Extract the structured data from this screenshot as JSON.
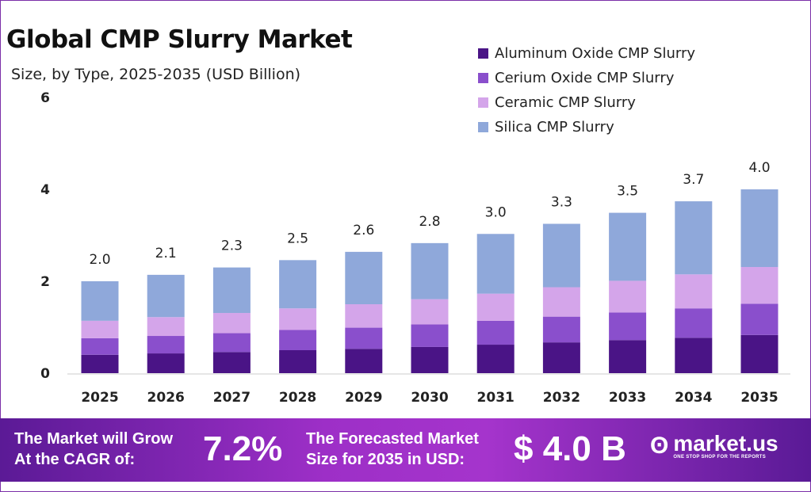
{
  "chart_data": {
    "type": "bar",
    "stacked": true,
    "title": "Global CMP Slurry Market",
    "subtitle": "Size, by Type, 2025-2035 (USD Billion)",
    "categories": [
      "2025",
      "2026",
      "2027",
      "2028",
      "2029",
      "2030",
      "2031",
      "2032",
      "2033",
      "2034",
      "2035"
    ],
    "series": [
      {
        "name": "Aluminum Oxide CMP Slurry",
        "color": "#4a1486",
        "values": [
          0.4,
          0.43,
          0.46,
          0.5,
          0.53,
          0.57,
          0.62,
          0.67,
          0.72,
          0.77,
          0.83
        ]
      },
      {
        "name": "Cerium Oxide CMP Slurry",
        "color": "#8a4fcc",
        "values": [
          0.36,
          0.38,
          0.41,
          0.44,
          0.46,
          0.49,
          0.52,
          0.56,
          0.6,
          0.64,
          0.68
        ]
      },
      {
        "name": "Ceramic CMP Slurry",
        "color": "#d4a5ea",
        "values": [
          0.38,
          0.41,
          0.44,
          0.47,
          0.51,
          0.55,
          0.59,
          0.64,
          0.69,
          0.74,
          0.8
        ]
      },
      {
        "name": "Silica CMP Slurry",
        "color": "#8fa8da",
        "values": [
          0.86,
          0.92,
          0.99,
          1.05,
          1.14,
          1.22,
          1.3,
          1.38,
          1.48,
          1.59,
          1.69
        ]
      }
    ],
    "totals_labels": [
      "2.0",
      "2.1",
      "2.3",
      "2.5",
      "2.6",
      "2.8",
      "3.0",
      "3.3",
      "3.5",
      "3.7",
      "4.0"
    ],
    "yticks": [
      "0",
      "2",
      "4",
      "6"
    ],
    "ylim": [
      0,
      6
    ],
    "grid": false,
    "legend_position": "top-right"
  },
  "footer": {
    "cagr_text_1": "The Market will Grow",
    "cagr_text_2": "At the CAGR of:",
    "cagr_value": "7.2%",
    "forecast_text_1": "The Forecasted Market",
    "forecast_text_2": "Size for 2035 in USD:",
    "forecast_value": "$ 4.0 B",
    "brand": "market.us",
    "tagline": "ONE STOP SHOP FOR THE REPORTS"
  }
}
